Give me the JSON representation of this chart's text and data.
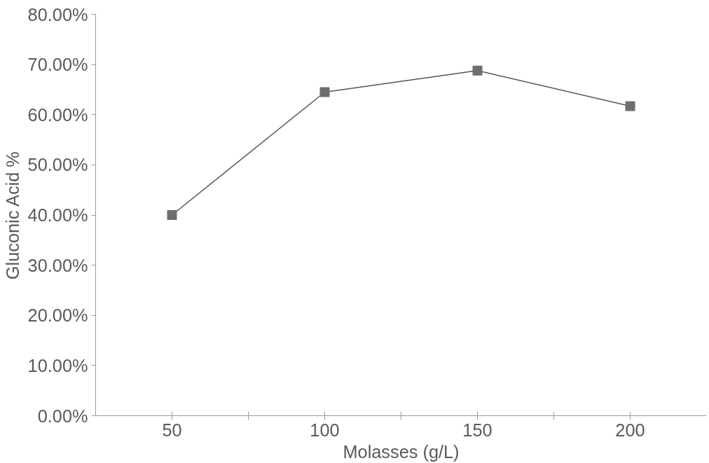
{
  "chart_data": {
    "type": "line",
    "xlabel": "Molasses (g/L)",
    "ylabel": "Gluconic Acid %",
    "x": [
      50,
      100,
      150,
      200
    ],
    "series": [
      {
        "color": "#6e6e6e",
        "values": [
          40.0,
          64.5,
          68.8,
          61.7
        ]
      }
    ],
    "xlim": [
      25,
      225
    ],
    "xticks": [
      50,
      {
        "value": 75,
        "label": null
      },
      100,
      {
        "value": 125,
        "label": null
      },
      150,
      {
        "value": 175,
        "label": null
      },
      200
    ],
    "ylim": [
      0,
      80
    ],
    "yticks": [
      {
        "value": 0,
        "label": "0.00%"
      },
      {
        "value": 10,
        "label": "10.00%"
      },
      {
        "value": 20,
        "label": "20.00%"
      },
      {
        "value": 30,
        "label": "30.00%"
      },
      {
        "value": 40,
        "label": "40.00%"
      },
      {
        "value": 50,
        "label": "50.00%"
      },
      {
        "value": 60,
        "label": "60.00%"
      },
      {
        "value": 70,
        "label": "70.00%"
      },
      {
        "value": 80,
        "label": "80.00%"
      }
    ],
    "marker": "square",
    "grid": false
  }
}
